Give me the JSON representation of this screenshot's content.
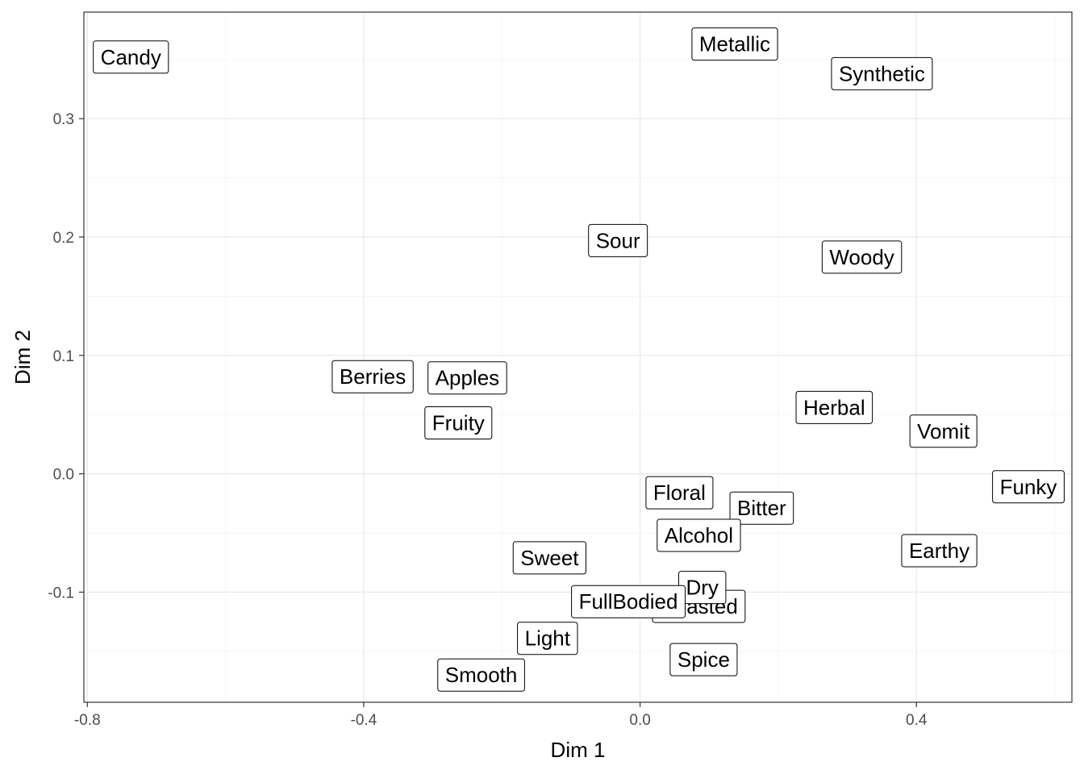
{
  "chart_data": {
    "type": "scatter",
    "xlabel": "Dim 1",
    "ylabel": "Dim 2",
    "xlim": [
      -0.805,
      0.625
    ],
    "ylim": [
      -0.193,
      0.39
    ],
    "x_ticks": [
      -0.8,
      -0.4,
      0.0,
      0.4
    ],
    "x_tick_labels": [
      "-0.8",
      "-0.4",
      "0.0",
      "0.4"
    ],
    "y_ticks": [
      -0.1,
      0.0,
      0.1,
      0.2,
      0.3
    ],
    "y_tick_labels": [
      "-0.1",
      "0.0",
      "0.1",
      "0.2",
      "0.3"
    ],
    "grid": true,
    "point_labels": true,
    "points": [
      {
        "label": "Candy",
        "x": -0.737,
        "y": 0.352
      },
      {
        "label": "Metallic",
        "x": 0.137,
        "y": 0.363
      },
      {
        "label": "Synthetic",
        "x": 0.35,
        "y": 0.338
      },
      {
        "label": "Sour",
        "x": -0.032,
        "y": 0.197
      },
      {
        "label": "Woody",
        "x": 0.321,
        "y": 0.183
      },
      {
        "label": "Apples",
        "x": -0.25,
        "y": 0.081
      },
      {
        "label": "Berries",
        "x": -0.387,
        "y": 0.082
      },
      {
        "label": "Fruity",
        "x": -0.263,
        "y": 0.043
      },
      {
        "label": "Herbal",
        "x": 0.281,
        "y": 0.056
      },
      {
        "label": "Vomit",
        "x": 0.439,
        "y": 0.036
      },
      {
        "label": "Funky",
        "x": 0.562,
        "y": -0.011
      },
      {
        "label": "Floral",
        "x": 0.057,
        "y": -0.016
      },
      {
        "label": "Bitter",
        "x": 0.176,
        "y": -0.029
      },
      {
        "label": "Alcohol",
        "x": 0.085,
        "y": -0.052
      },
      {
        "label": "Earthy",
        "x": 0.433,
        "y": -0.065
      },
      {
        "label": "Sweet",
        "x": -0.131,
        "y": -0.071
      },
      {
        "label": "Roasted",
        "x": 0.085,
        "y": -0.112
      },
      {
        "label": "Dry",
        "x": 0.09,
        "y": -0.096
      },
      {
        "label": "FullBodied",
        "x": -0.017,
        "y": -0.108
      },
      {
        "label": "Light",
        "x": -0.134,
        "y": -0.139
      },
      {
        "label": "Spice",
        "x": 0.092,
        "y": -0.157
      },
      {
        "label": "Smooth",
        "x": -0.23,
        "y": -0.17
      }
    ]
  }
}
